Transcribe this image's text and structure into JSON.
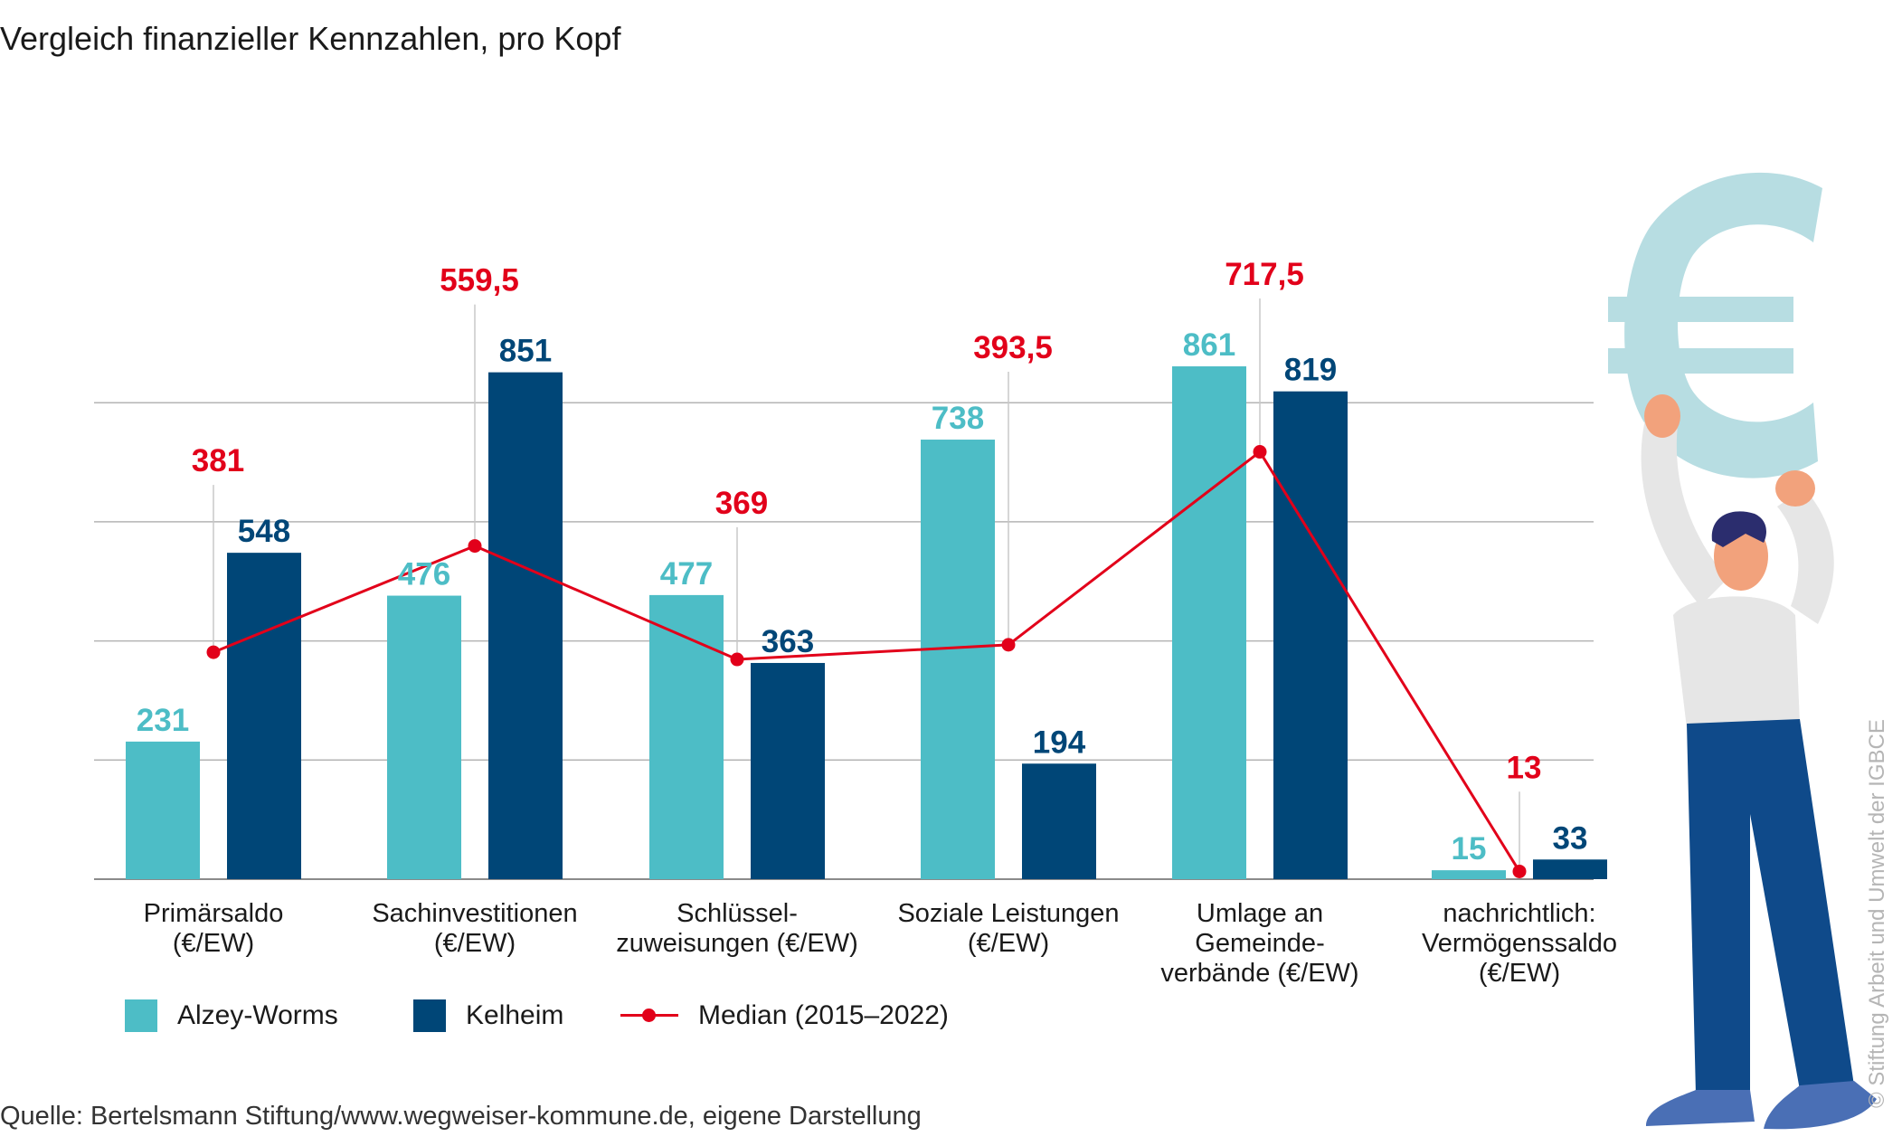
{
  "title": "Vergleich finanzieller Kennzahlen, pro Kopf",
  "source": "Quelle: Bertelsmann Stiftung/www.wegweiser-kommune.de, eigene Darstellung",
  "copyright": "© Stiftung Arbeit und Umwelt der IGBCE",
  "colors": {
    "alzey": "#4dbdc6",
    "kelheim": "#004677",
    "median": "#e2001a",
    "grid": "#a0a0a0"
  },
  "chart_data": {
    "type": "bar",
    "title": "Vergleich finanzieller Kennzahlen, pro Kopf",
    "categories": [
      [
        "Primärsaldo",
        "(€/EW)"
      ],
      [
        "Sachinvestitionen",
        "(€/EW)"
      ],
      [
        "Schlüssel-",
        "zuweisungen (€/EW)"
      ],
      [
        "Soziale Leistungen",
        "(€/EW)"
      ],
      [
        "Umlage an",
        "Gemeinde-",
        "verbände (€/EW)"
      ],
      [
        "nachrichtlich:",
        "Vermögenssaldo",
        "(€/EW)"
      ]
    ],
    "series": [
      {
        "name": "Alzey-Worms",
        "values": [
          231,
          476,
          477,
          738,
          861,
          15
        ],
        "labels": [
          "231",
          "476",
          "477",
          "738",
          "861",
          "15"
        ]
      },
      {
        "name": "Kelheim",
        "values": [
          548,
          851,
          363,
          194,
          819,
          33
        ],
        "labels": [
          "548",
          "851",
          "363",
          "194",
          "819",
          "33"
        ]
      },
      {
        "name": "Median (2015–2022)",
        "type": "line",
        "values": [
          381,
          559.5,
          369,
          393.5,
          717.5,
          13
        ],
        "labels": [
          "381",
          "559,5",
          "369",
          "393,5",
          "717,5",
          "13"
        ]
      }
    ],
    "ylim": [
      0,
      1000
    ],
    "grid": true,
    "legend_position": "bottom-left"
  }
}
